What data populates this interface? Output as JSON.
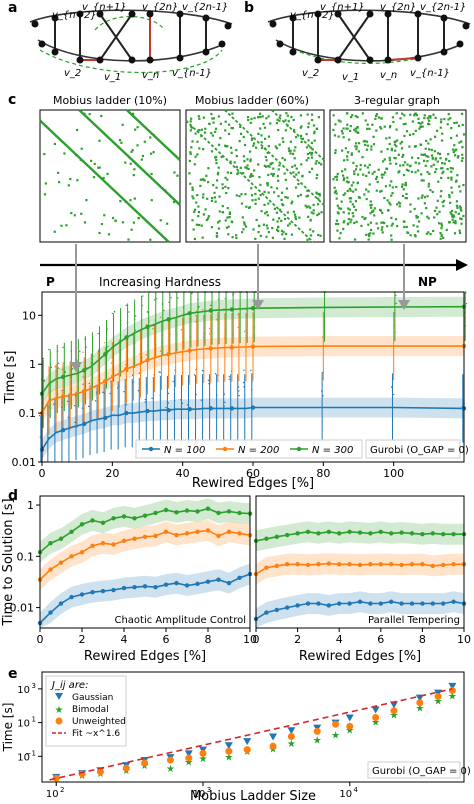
{
  "colors": {
    "series_100": "#1f77b4",
    "series_200": "#ff7f0e",
    "series_300": "#2ca02c",
    "scatter_green": "#2ca02c",
    "edge_red": "#c0392b",
    "dashed_green": "#2ca02c",
    "fit_red": "#d62728"
  },
  "panel_ab": {
    "a_label": "a",
    "b_label": "b",
    "a_nodes": [
      "v_{n+2}",
      "v_{n+1}",
      "v_{2n}",
      "v_{2n-1}",
      "v_2",
      "v_1",
      "v_n",
      "v_{n-1}"
    ],
    "b_nodes": [
      "v_{n+2}",
      "v_{n+1}",
      "v_{2n}",
      "v_{2n-1}",
      "v_2",
      "v_1",
      "v_n",
      "v_{n-1}"
    ]
  },
  "panel_c_top": {
    "label": "c",
    "titles": [
      "Mobius ladder (10%)",
      "Mobius ladder (60%)",
      "3-regular graph"
    ],
    "hardness_left": "P",
    "hardness_text": "Increasing Hardness",
    "hardness_right": "NP"
  },
  "chart_data": [
    {
      "id": "panel_c",
      "type": "line",
      "xlabel": "Rewired Edges [%]",
      "ylabel": "Time [s]",
      "xlim": [
        0,
        120
      ],
      "ylim": [
        0.01,
        30
      ],
      "yscale": "log",
      "xticks": [
        "0",
        "20",
        "40",
        "60",
        "80",
        "100"
      ],
      "yticks": [
        "0.01",
        "0.1",
        "1",
        "10"
      ],
      "annotation": "Gurobi (O_GAP = 0)",
      "legend_position": "bottom",
      "x": [
        0,
        2,
        4,
        6,
        8,
        10,
        12,
        14,
        16,
        18,
        20,
        22,
        24,
        26,
        28,
        30,
        32,
        34,
        36,
        38,
        40,
        42,
        44,
        46,
        48,
        50,
        52,
        54,
        56,
        58,
        60,
        80,
        100,
        120
      ],
      "series": [
        {
          "name": "N = 100",
          "values": [
            0.018,
            0.03,
            0.04,
            0.045,
            0.05,
            0.055,
            0.06,
            0.07,
            0.075,
            0.08,
            0.09,
            0.09,
            0.1,
            0.1,
            0.105,
            0.11,
            0.11,
            0.115,
            0.115,
            0.12,
            0.12,
            0.12,
            0.12,
            0.125,
            0.125,
            0.125,
            0.125,
            0.125,
            0.125,
            0.125,
            0.13,
            0.13,
            0.13,
            0.125
          ]
        },
        {
          "name": "N = 200",
          "values": [
            0.1,
            0.18,
            0.2,
            0.22,
            0.23,
            0.25,
            0.28,
            0.32,
            0.38,
            0.45,
            0.55,
            0.65,
            0.8,
            0.9,
            1.05,
            1.2,
            1.35,
            1.5,
            1.6,
            1.7,
            1.8,
            1.9,
            2.0,
            2.05,
            2.1,
            2.15,
            2.2,
            2.2,
            2.25,
            2.25,
            2.3,
            2.35,
            2.35,
            2.35
          ]
        },
        {
          "name": "N = 300",
          "values": [
            0.25,
            0.4,
            0.5,
            0.55,
            0.6,
            0.65,
            0.75,
            0.9,
            1.2,
            1.6,
            2.2,
            2.8,
            3.5,
            4.2,
            5.0,
            5.8,
            6.5,
            7.5,
            8.3,
            9.0,
            10.0,
            11.0,
            11.5,
            12.0,
            12.5,
            12.8,
            13.0,
            13.2,
            13.5,
            13.7,
            14.0,
            14.5,
            14.8,
            15.0
          ]
        }
      ]
    },
    {
      "id": "panel_d_left",
      "type": "line",
      "xlabel": "Rewired Edges [%]",
      "ylabel": "Time to Solution [s]",
      "xlim": [
        0,
        10
      ],
      "ylim": [
        0.004,
        1.5
      ],
      "yscale": "log",
      "xticks": [
        "0",
        "2",
        "4",
        "6",
        "8",
        "10"
      ],
      "yticks": [
        "0.01",
        "0.1",
        "1"
      ],
      "annotation": "Chaotic Amplitude Control",
      "x": [
        0,
        0.5,
        1,
        1.5,
        2,
        2.5,
        3,
        3.5,
        4,
        4.5,
        5,
        5.5,
        6,
        6.5,
        7,
        7.5,
        8,
        8.5,
        9,
        9.5,
        10
      ],
      "series": [
        {
          "name": "N = 100",
          "values": [
            0.005,
            0.008,
            0.012,
            0.016,
            0.018,
            0.02,
            0.021,
            0.022,
            0.024,
            0.025,
            0.026,
            0.025,
            0.028,
            0.03,
            0.027,
            0.029,
            0.032,
            0.035,
            0.03,
            0.038,
            0.045
          ]
        },
        {
          "name": "N = 200",
          "values": [
            0.035,
            0.055,
            0.075,
            0.1,
            0.12,
            0.16,
            0.18,
            0.17,
            0.2,
            0.22,
            0.24,
            0.25,
            0.3,
            0.26,
            0.28,
            0.3,
            0.32,
            0.25,
            0.3,
            0.28,
            0.26
          ]
        },
        {
          "name": "N = 300",
          "values": [
            0.12,
            0.18,
            0.22,
            0.3,
            0.42,
            0.5,
            0.45,
            0.55,
            0.6,
            0.55,
            0.62,
            0.7,
            0.8,
            0.72,
            0.78,
            0.75,
            0.85,
            0.7,
            0.75,
            0.7,
            0.68
          ]
        }
      ]
    },
    {
      "id": "panel_d_right",
      "type": "line",
      "xlabel": "Rewired Edges [%]",
      "xlim": [
        0,
        10
      ],
      "ylim": [
        0.004,
        1.5
      ],
      "yscale": "log",
      "xticks": [
        "0",
        "2",
        "4",
        "6",
        "8",
        "10"
      ],
      "annotation": "Parallel Tempering",
      "x": [
        0,
        0.5,
        1,
        1.5,
        2,
        2.5,
        3,
        3.5,
        4,
        4.5,
        5,
        5.5,
        6,
        6.5,
        7,
        7.5,
        8,
        8.5,
        9,
        9.5,
        10
      ],
      "series": [
        {
          "name": "N = 100",
          "values": [
            0.006,
            0.008,
            0.009,
            0.01,
            0.011,
            0.012,
            0.012,
            0.011,
            0.012,
            0.012,
            0.013,
            0.012,
            0.012,
            0.013,
            0.012,
            0.012,
            0.012,
            0.012,
            0.012,
            0.013,
            0.012
          ]
        },
        {
          "name": "N = 200",
          "values": [
            0.045,
            0.06,
            0.065,
            0.07,
            0.07,
            0.068,
            0.07,
            0.072,
            0.07,
            0.07,
            0.068,
            0.07,
            0.07,
            0.07,
            0.068,
            0.07,
            0.07,
            0.065,
            0.068,
            0.07,
            0.07
          ]
        },
        {
          "name": "N = 300",
          "values": [
            0.2,
            0.22,
            0.24,
            0.26,
            0.28,
            0.3,
            0.28,
            0.3,
            0.28,
            0.3,
            0.29,
            0.28,
            0.3,
            0.28,
            0.29,
            0.28,
            0.27,
            0.28,
            0.27,
            0.27,
            0.27
          ]
        }
      ]
    },
    {
      "id": "panel_e",
      "type": "scatter",
      "xlabel": "Mobius Ladder Size",
      "ylabel": "Time [s]",
      "xscale": "log",
      "yscale": "log",
      "xlim": [
        80,
        60000
      ],
      "ylim": [
        0.003,
        10000
      ],
      "xticks": [
        "10^2",
        "10^3",
        "10^4"
      ],
      "yticks": [
        "10^-1",
        "10^1",
        "10^3"
      ],
      "legend_title": "J_ij are:",
      "legend_position": "top-left",
      "annotation": "Gurobi (O_GAP = 0)",
      "series": [
        {
          "name": "Gaussian",
          "marker": "triangle-down",
          "color": "#1f77b4",
          "x": [
            100,
            150,
            200,
            300,
            400,
            600,
            800,
            1000,
            1500,
            2000,
            3000,
            4000,
            6000,
            8000,
            10000,
            15000,
            20000,
            30000,
            40000,
            50000
          ],
          "y": [
            0.006,
            0.01,
            0.015,
            0.03,
            0.06,
            0.09,
            0.15,
            0.25,
            0.45,
            0.8,
            1.5,
            3.5,
            5,
            10,
            20,
            60,
            120,
            300,
            600,
            1500
          ]
        },
        {
          "name": "Bimodal",
          "marker": "star",
          "color": "#2ca02c",
          "x": [
            100,
            150,
            200,
            300,
            400,
            600,
            800,
            1000,
            1500,
            2000,
            3000,
            4000,
            6000,
            8000,
            10000,
            15000,
            20000,
            30000,
            40000,
            50000
          ],
          "y": [
            0.005,
            0.008,
            0.01,
            0.015,
            0.03,
            0.02,
            0.05,
            0.08,
            0.1,
            0.2,
            0.3,
            0.6,
            1,
            2,
            4,
            12,
            30,
            80,
            200,
            400
          ]
        },
        {
          "name": "Unweighted",
          "marker": "circle",
          "color": "#ff7f0e",
          "x": [
            100,
            150,
            200,
            300,
            400,
            600,
            800,
            1000,
            1500,
            2000,
            3000,
            4000,
            6000,
            8000,
            10000,
            15000,
            20000,
            30000,
            40000,
            50000
          ],
          "y": [
            0.005,
            0.009,
            0.012,
            0.02,
            0.04,
            0.06,
            0.08,
            0.15,
            0.2,
            0.25,
            0.4,
            1.5,
            3,
            8,
            6,
            20,
            50,
            150,
            350,
            800
          ]
        },
        {
          "name": "Fit ~x^1.6",
          "type": "line",
          "style": "dashed",
          "color": "#d62728",
          "x": [
            90,
            50000
          ],
          "y": [
            0.004,
            1000
          ]
        }
      ]
    }
  ]
}
